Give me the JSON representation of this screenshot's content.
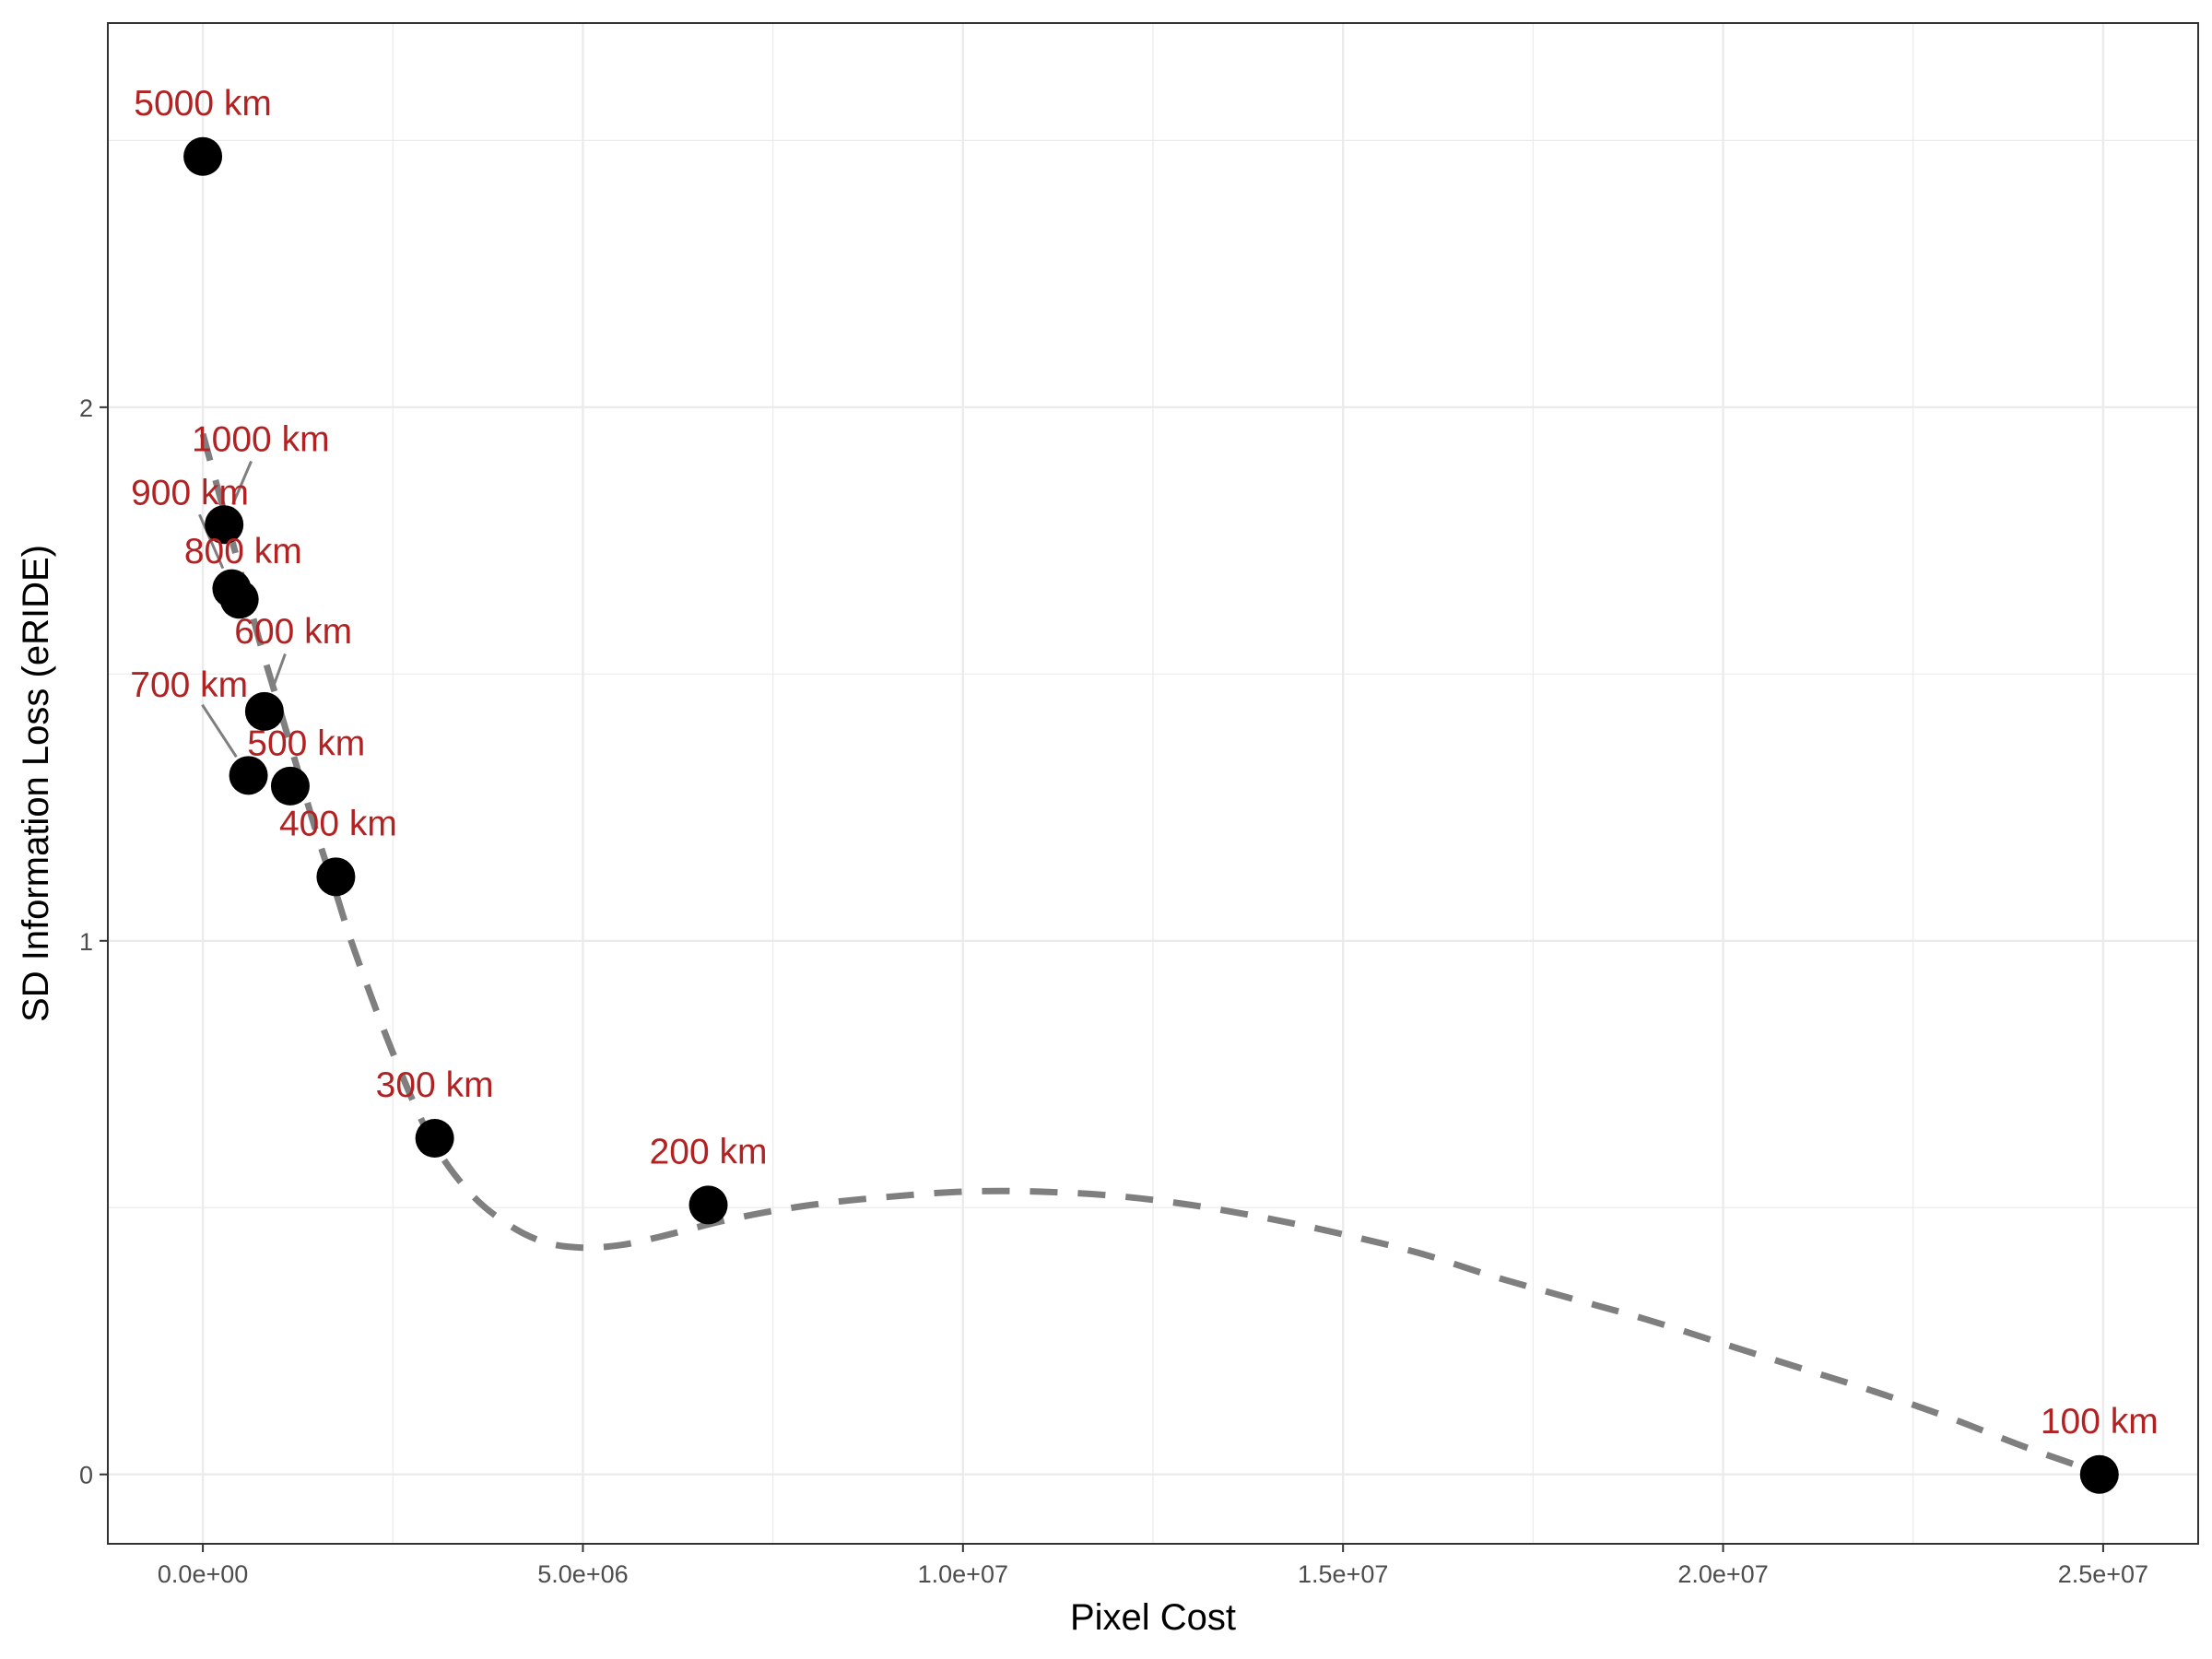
{
  "chart_data": {
    "type": "scatter",
    "title": "",
    "xlabel": "Pixel Cost",
    "ylabel": "SD Information Loss (eRIDE)",
    "xlim": [
      -1250000,
      26250000
    ],
    "ylim": [
      -0.13,
      2.72
    ],
    "x_ticks": [
      0,
      5000000,
      10000000,
      15000000,
      20000000,
      25000000
    ],
    "x_tick_labels": [
      "0.0e+00",
      "5.0e+06",
      "1.0e+07",
      "1.5e+07",
      "2.0e+07",
      "2.5e+07"
    ],
    "y_ticks": [
      0,
      1,
      2
    ],
    "y_tick_labels": [
      "0",
      "1",
      "2"
    ],
    "grid": true,
    "legend": "none",
    "colors": {
      "points": "#000000",
      "labels": "#b22222",
      "fit_line": "#7f7f7f",
      "leader": "#7f7f7f",
      "grid": "#ebebeb",
      "panel_border": "#333333"
    },
    "points": [
      {
        "label": "5000 km",
        "x": 0,
        "y": 2.47,
        "label_x": 0,
        "label_y": 2.57
      },
      {
        "label": "1000 km",
        "x": 280000,
        "y": 1.78,
        "label_x": 760000,
        "label_y": 1.94
      },
      {
        "label": "900 km",
        "x": 380000,
        "y": 1.66,
        "label_x": -170000,
        "label_y": 1.84
      },
      {
        "label": "800 km",
        "x": 480000,
        "y": 1.64,
        "label_x": 530000,
        "label_y": 1.73
      },
      {
        "label": "600 km",
        "x": 810000,
        "y": 1.43,
        "label_x": 1190000,
        "label_y": 1.58
      },
      {
        "label": "700 km",
        "x": 600000,
        "y": 1.31,
        "label_x": -180000,
        "label_y": 1.48
      },
      {
        "label": "500 km",
        "x": 1150000,
        "y": 1.29,
        "label_x": 1360000,
        "label_y": 1.37
      },
      {
        "label": "400 km",
        "x": 1750000,
        "y": 1.12,
        "label_x": 1780000,
        "label_y": 1.22
      },
      {
        "label": "300 km",
        "x": 3050000,
        "y": 0.63,
        "label_x": 3050000,
        "label_y": 0.73
      },
      {
        "label": "200 km",
        "x": 6650000,
        "y": 0.505,
        "label_x": 6650000,
        "label_y": 0.605
      },
      {
        "label": "100 km",
        "x": 24950000,
        "y": 0.0,
        "label_x": 24950000,
        "label_y": 0.1
      }
    ],
    "fit_line": {
      "style": "dashed",
      "x": [
        0,
        250000,
        500000,
        750000,
        1000000,
        1250000,
        1500000,
        1750000,
        2000000,
        2500000,
        3000000,
        3500000,
        4000000,
        4500000,
        5000000,
        5500000,
        6000000,
        7000000,
        8000000,
        9000000,
        10000000,
        11000000,
        12000000,
        13000000,
        14000000,
        15000000,
        16000000,
        17000000,
        18000000,
        19000000,
        20000000,
        21000000,
        22000000,
        23000000,
        24000000,
        25000000
      ],
      "y": [
        1.95,
        1.82,
        1.69,
        1.56,
        1.44,
        1.32,
        1.2,
        1.09,
        0.98,
        0.79,
        0.63,
        0.53,
        0.47,
        0.435,
        0.425,
        0.43,
        0.445,
        0.48,
        0.505,
        0.52,
        0.53,
        0.53,
        0.522,
        0.505,
        0.48,
        0.45,
        0.415,
        0.37,
        0.33,
        0.29,
        0.245,
        0.2,
        0.155,
        0.105,
        0.05,
        0.0
      ]
    }
  }
}
